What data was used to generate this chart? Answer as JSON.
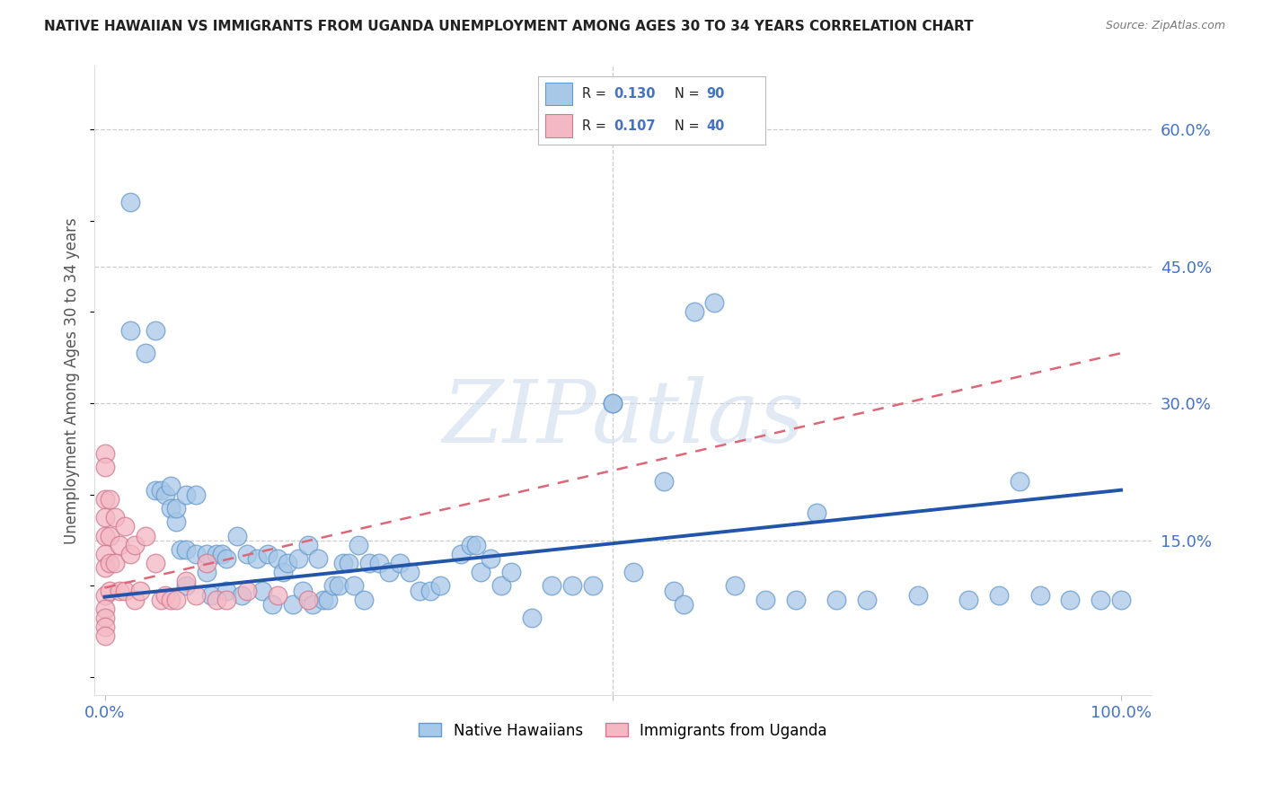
{
  "title": "NATIVE HAWAIIAN VS IMMIGRANTS FROM UGANDA UNEMPLOYMENT AMONG AGES 30 TO 34 YEARS CORRELATION CHART",
  "source": "Source: ZipAtlas.com",
  "ylabel": "Unemployment Among Ages 30 to 34 years",
  "xlim": [
    -0.01,
    1.03
  ],
  "ylim": [
    -0.02,
    0.67
  ],
  "xtick_positions": [
    0.0,
    0.5,
    1.0
  ],
  "xtick_labels": [
    "0.0%",
    "",
    "100.0%"
  ],
  "ytick_positions": [
    0.15,
    0.3,
    0.45,
    0.6
  ],
  "ytick_labels_right": [
    "15.0%",
    "30.0%",
    "45.0%",
    "60.0%"
  ],
  "blue_color": "#a8c8e8",
  "blue_edge_color": "#6699cc",
  "pink_color": "#f4b8c4",
  "pink_edge_color": "#d07890",
  "blue_line_color": "#2255aa",
  "pink_line_color": "#dd6677",
  "legend_label1": "Native Hawaiians",
  "legend_label2": "Immigrants from Uganda",
  "watermark": "ZIPatlas",
  "blue_line_x0": 0.0,
  "blue_line_y0": 0.088,
  "blue_line_x1": 1.0,
  "blue_line_y1": 0.205,
  "pink_line_x0": 0.0,
  "pink_line_y0": 0.098,
  "pink_line_x1": 1.0,
  "pink_line_y1": 0.355,
  "blue_scatter_x": [
    0.025,
    0.025,
    0.04,
    0.05,
    0.05,
    0.055,
    0.06,
    0.065,
    0.065,
    0.07,
    0.07,
    0.075,
    0.08,
    0.08,
    0.08,
    0.09,
    0.09,
    0.1,
    0.1,
    0.105,
    0.11,
    0.115,
    0.12,
    0.12,
    0.13,
    0.135,
    0.14,
    0.15,
    0.155,
    0.16,
    0.165,
    0.17,
    0.175,
    0.18,
    0.185,
    0.19,
    0.195,
    0.2,
    0.205,
    0.21,
    0.215,
    0.22,
    0.225,
    0.23,
    0.235,
    0.24,
    0.245,
    0.25,
    0.255,
    0.26,
    0.27,
    0.28,
    0.29,
    0.3,
    0.31,
    0.32,
    0.33,
    0.35,
    0.37,
    0.38,
    0.39,
    0.4,
    0.42,
    0.44,
    0.46,
    0.48,
    0.5,
    0.5,
    0.52,
    0.55,
    0.58,
    0.6,
    0.62,
    0.65,
    0.68,
    0.7,
    0.72,
    0.75,
    0.8,
    0.85,
    0.88,
    0.9,
    0.92,
    0.95,
    0.98,
    1.0,
    0.36,
    0.365,
    0.56,
    0.57
  ],
  "blue_scatter_y": [
    0.52,
    0.38,
    0.355,
    0.38,
    0.205,
    0.205,
    0.2,
    0.21,
    0.185,
    0.17,
    0.185,
    0.14,
    0.2,
    0.14,
    0.1,
    0.2,
    0.135,
    0.135,
    0.115,
    0.09,
    0.135,
    0.135,
    0.13,
    0.095,
    0.155,
    0.09,
    0.135,
    0.13,
    0.095,
    0.135,
    0.08,
    0.13,
    0.115,
    0.125,
    0.08,
    0.13,
    0.095,
    0.145,
    0.08,
    0.13,
    0.085,
    0.085,
    0.1,
    0.1,
    0.125,
    0.125,
    0.1,
    0.145,
    0.085,
    0.125,
    0.125,
    0.115,
    0.125,
    0.115,
    0.095,
    0.095,
    0.1,
    0.135,
    0.115,
    0.13,
    0.1,
    0.115,
    0.065,
    0.1,
    0.1,
    0.1,
    0.3,
    0.3,
    0.115,
    0.215,
    0.4,
    0.41,
    0.1,
    0.085,
    0.085,
    0.18,
    0.085,
    0.085,
    0.09,
    0.085,
    0.09,
    0.215,
    0.09,
    0.085,
    0.085,
    0.085,
    0.145,
    0.145,
    0.095,
    0.08
  ],
  "pink_scatter_x": [
    0.0,
    0.0,
    0.0,
    0.0,
    0.0,
    0.0,
    0.0,
    0.0,
    0.0,
    0.0,
    0.0,
    0.0,
    0.005,
    0.005,
    0.005,
    0.005,
    0.01,
    0.01,
    0.015,
    0.015,
    0.02,
    0.02,
    0.025,
    0.03,
    0.03,
    0.035,
    0.04,
    0.05,
    0.055,
    0.06,
    0.065,
    0.07,
    0.08,
    0.09,
    0.1,
    0.11,
    0.12,
    0.14,
    0.17,
    0.2
  ],
  "pink_scatter_y": [
    0.245,
    0.23,
    0.195,
    0.175,
    0.155,
    0.135,
    0.12,
    0.09,
    0.075,
    0.065,
    0.055,
    0.045,
    0.195,
    0.155,
    0.125,
    0.095,
    0.175,
    0.125,
    0.145,
    0.095,
    0.165,
    0.095,
    0.135,
    0.145,
    0.085,
    0.095,
    0.155,
    0.125,
    0.085,
    0.09,
    0.085,
    0.085,
    0.105,
    0.09,
    0.125,
    0.085,
    0.085,
    0.095,
    0.09,
    0.085
  ]
}
